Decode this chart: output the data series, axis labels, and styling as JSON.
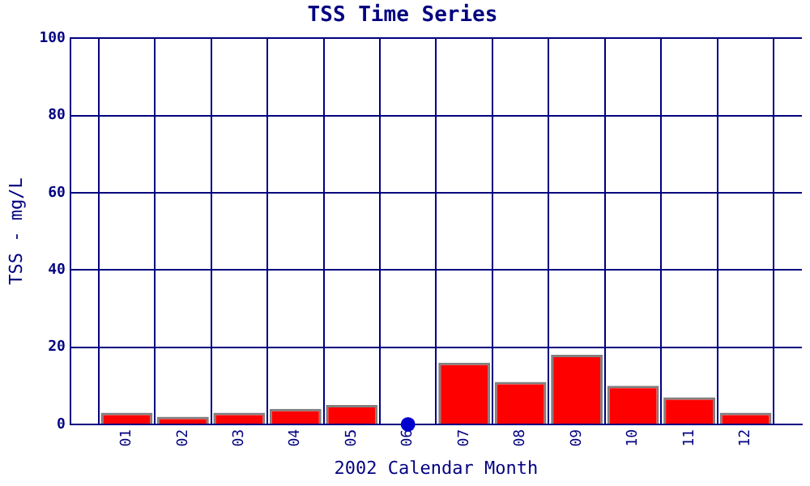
{
  "chart_data": {
    "type": "bar",
    "title": "TSS Time Series",
    "xlabel": "2002 Calendar Month",
    "ylabel": "TSS - mg/L",
    "categories": [
      "01",
      "02",
      "03",
      "04",
      "05",
      "06",
      "07",
      "08",
      "09",
      "10",
      "11",
      "12"
    ],
    "series": [
      {
        "color": "#ff0000",
        "values": [
          3,
          2,
          3,
          4,
          5,
          0,
          16,
          11,
          18,
          10,
          7,
          3
        ]
      },
      {
        "type": "scatter",
        "color": "#0000cc",
        "values": [
          null,
          null,
          null,
          null,
          null,
          0,
          null,
          null,
          null,
          null,
          null,
          null
        ]
      }
    ],
    "ylim": [
      0,
      100
    ],
    "yticks": [
      0,
      20,
      40,
      60,
      80,
      100
    ],
    "grid": true,
    "legend": false,
    "marker": "circle"
  }
}
